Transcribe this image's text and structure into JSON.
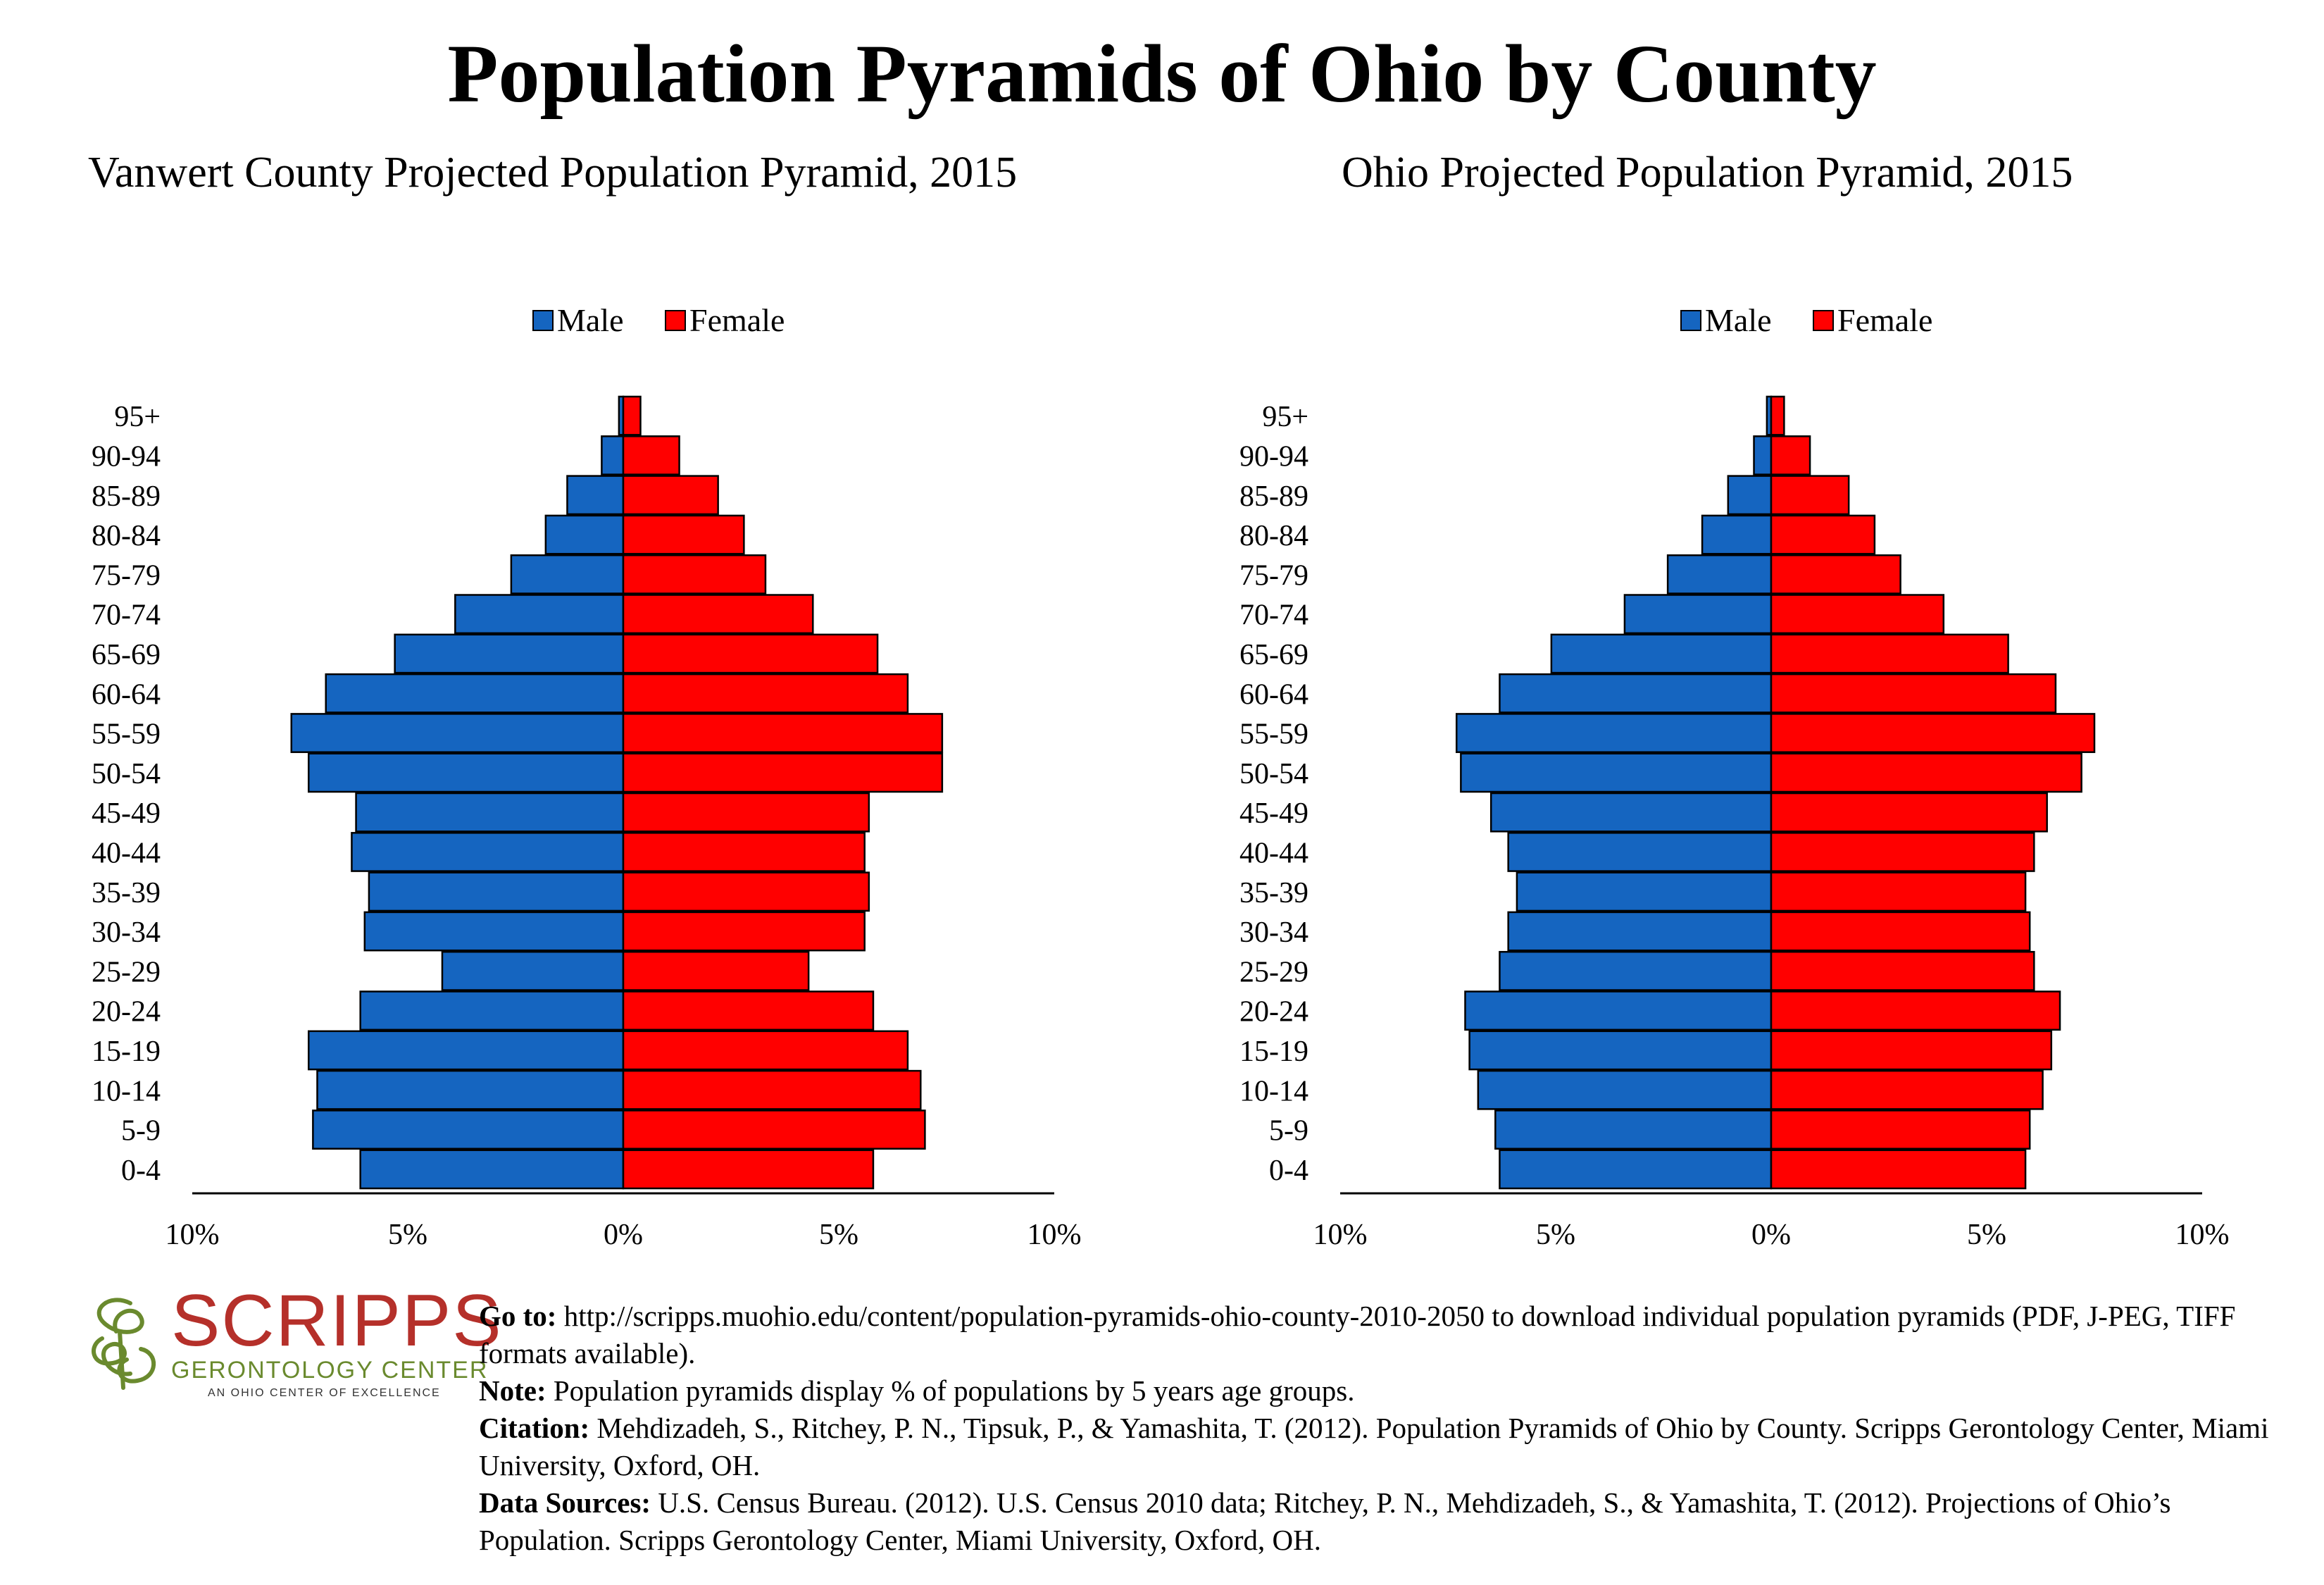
{
  "title": "Population Pyramids of Ohio by County",
  "charts_titles": {
    "left": "Vanwert County Projected Population Pyramid, 2015",
    "right": "Ohio Projected Population Pyramid, 2015"
  },
  "colors": {
    "male": "#1565c0",
    "female": "#ff0000",
    "axis": "#000000"
  },
  "chart_data": [
    {
      "type": "bar",
      "title": "Vanwert County Projected Population Pyramid, 2015",
      "orientation": "horizontal-pyramid",
      "categories": [
        "95+",
        "90-94",
        "85-89",
        "80-84",
        "75-79",
        "70-74",
        "65-69",
        "60-64",
        "55-59",
        "50-54",
        "45-49",
        "40-44",
        "35-39",
        "30-34",
        "25-29",
        "20-24",
        "15-19",
        "10-14",
        "5-9",
        "0-4"
      ],
      "series": [
        {
          "name": "Male",
          "values": [
            0.1,
            0.5,
            1.3,
            1.8,
            2.6,
            3.9,
            5.3,
            6.9,
            7.7,
            7.3,
            6.2,
            6.3,
            5.9,
            6.0,
            4.2,
            6.1,
            7.3,
            7.1,
            7.2,
            6.1
          ]
        },
        {
          "name": "Female",
          "values": [
            0.4,
            1.3,
            2.2,
            2.8,
            3.3,
            4.4,
            5.9,
            6.6,
            7.4,
            7.4,
            5.7,
            5.6,
            5.7,
            5.6,
            4.3,
            5.8,
            6.6,
            6.9,
            7.0,
            5.8
          ]
        }
      ],
      "xlim": [
        -10,
        10
      ],
      "xticks": [
        "10%",
        "5%",
        "0%",
        "5%",
        "10%"
      ],
      "legend": [
        "Male",
        "Female"
      ],
      "legend_position": "top-center",
      "grid": false
    },
    {
      "type": "bar",
      "title": "Ohio Projected Population Pyramid, 2015",
      "orientation": "horizontal-pyramid",
      "categories": [
        "95+",
        "90-94",
        "85-89",
        "80-84",
        "75-79",
        "70-74",
        "65-69",
        "60-64",
        "55-59",
        "50-54",
        "45-49",
        "40-44",
        "35-39",
        "30-34",
        "25-29",
        "20-24",
        "15-19",
        "10-14",
        "5-9",
        "0-4"
      ],
      "series": [
        {
          "name": "Male",
          "values": [
            0.1,
            0.4,
            1.0,
            1.6,
            2.4,
            3.4,
            5.1,
            6.3,
            7.3,
            7.2,
            6.5,
            6.1,
            5.9,
            6.1,
            6.3,
            7.1,
            7.0,
            6.8,
            6.4,
            6.3
          ]
        },
        {
          "name": "Female",
          "values": [
            0.3,
            0.9,
            1.8,
            2.4,
            3.0,
            4.0,
            5.5,
            6.6,
            7.5,
            7.2,
            6.4,
            6.1,
            5.9,
            6.0,
            6.1,
            6.7,
            6.5,
            6.3,
            6.0,
            5.9
          ]
        }
      ],
      "xlim": [
        -10,
        10
      ],
      "xticks": [
        "10%",
        "5%",
        "0%",
        "5%",
        "10%"
      ],
      "legend": [
        "Male",
        "Female"
      ],
      "legend_position": "top-center",
      "grid": false
    }
  ],
  "logo": {
    "word": "SCRIPPS",
    "subtitle": "GERONTOLOGY CENTER",
    "tagline": "AN OHIO CENTER OF EXCELLENCE"
  },
  "footer": {
    "goto_label": "Go to:",
    "goto_text": " http://scripps.muohio.edu/content/population-pyramids-ohio-county-2010-2050 to download individual population pyramids (PDF, J-PEG, TIFF formats available).",
    "note_label": "Note:",
    "note_text": " Population pyramids display % of populations by 5 years age groups.",
    "citation_label": "Citation:",
    "citation_text": " Mehdizadeh, S., Ritchey, P. N., Tipsuk, P., & Yamashita, T. (2012). Population Pyramids of Ohio by County. Scripps Gerontology Center, Miami University, Oxford, OH.",
    "sources_label": "Data Sources:",
    "sources_text": " U.S. Census Bureau. (2012). U.S. Census 2010 data; Ritchey, P. N., Mehdizadeh, S., & Yamashita, T. (2012). Projections of Ohio’s Population. Scripps Gerontology Center, Miami University, Oxford, OH."
  }
}
